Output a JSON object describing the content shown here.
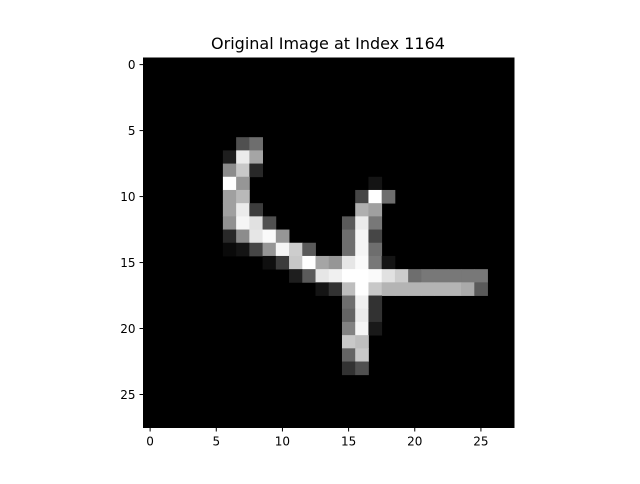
{
  "chart_data": {
    "type": "heatmap",
    "title": "Original Image at Index 1164",
    "xlabel": "",
    "ylabel": "",
    "colormap": "gray",
    "shape": [
      28,
      28
    ],
    "vmin": 0,
    "vmax": 255,
    "xlim": [
      -0.5,
      27.5
    ],
    "ylim": [
      27.5,
      -0.5
    ],
    "x_ticks": [
      0,
      5,
      10,
      15,
      20,
      25
    ],
    "y_ticks": [
      0,
      5,
      10,
      15,
      20,
      25
    ],
    "grid": false,
    "pixels": [
      {
        "row": 6,
        "col": 7,
        "v": 80
      },
      {
        "row": 6,
        "col": 8,
        "v": 110
      },
      {
        "row": 7,
        "col": 6,
        "v": 30
      },
      {
        "row": 7,
        "col": 7,
        "v": 235
      },
      {
        "row": 7,
        "col": 8,
        "v": 165
      },
      {
        "row": 8,
        "col": 6,
        "v": 140
      },
      {
        "row": 8,
        "col": 7,
        "v": 200
      },
      {
        "row": 8,
        "col": 8,
        "v": 40
      },
      {
        "row": 9,
        "col": 6,
        "v": 255
      },
      {
        "row": 9,
        "col": 7,
        "v": 150
      },
      {
        "row": 9,
        "col": 17,
        "v": 20
      },
      {
        "row": 10,
        "col": 6,
        "v": 160
      },
      {
        "row": 10,
        "col": 7,
        "v": 185
      },
      {
        "row": 10,
        "col": 16,
        "v": 70
      },
      {
        "row": 10,
        "col": 17,
        "v": 255
      },
      {
        "row": 10,
        "col": 18,
        "v": 110
      },
      {
        "row": 11,
        "col": 6,
        "v": 160
      },
      {
        "row": 11,
        "col": 7,
        "v": 235
      },
      {
        "row": 11,
        "col": 8,
        "v": 60
      },
      {
        "row": 11,
        "col": 16,
        "v": 175
      },
      {
        "row": 11,
        "col": 17,
        "v": 160
      },
      {
        "row": 12,
        "col": 6,
        "v": 145
      },
      {
        "row": 12,
        "col": 7,
        "v": 245
      },
      {
        "row": 12,
        "col": 8,
        "v": 225
      },
      {
        "row": 12,
        "col": 9,
        "v": 80
      },
      {
        "row": 12,
        "col": 15,
        "v": 90
      },
      {
        "row": 12,
        "col": 16,
        "v": 235
      },
      {
        "row": 12,
        "col": 17,
        "v": 120
      },
      {
        "row": 13,
        "col": 6,
        "v": 40
      },
      {
        "row": 13,
        "col": 7,
        "v": 140
      },
      {
        "row": 13,
        "col": 8,
        "v": 230
      },
      {
        "row": 13,
        "col": 9,
        "v": 250
      },
      {
        "row": 13,
        "col": 10,
        "v": 150
      },
      {
        "row": 13,
        "col": 15,
        "v": 110
      },
      {
        "row": 13,
        "col": 16,
        "v": 245
      },
      {
        "row": 13,
        "col": 17,
        "v": 70
      },
      {
        "row": 14,
        "col": 6,
        "v": 10
      },
      {
        "row": 14,
        "col": 7,
        "v": 20
      },
      {
        "row": 14,
        "col": 8,
        "v": 70
      },
      {
        "row": 14,
        "col": 9,
        "v": 150
      },
      {
        "row": 14,
        "col": 10,
        "v": 245
      },
      {
        "row": 14,
        "col": 11,
        "v": 205
      },
      {
        "row": 14,
        "col": 12,
        "v": 90
      },
      {
        "row": 14,
        "col": 15,
        "v": 110
      },
      {
        "row": 14,
        "col": 16,
        "v": 245
      },
      {
        "row": 14,
        "col": 17,
        "v": 110
      },
      {
        "row": 15,
        "col": 9,
        "v": 15
      },
      {
        "row": 15,
        "col": 10,
        "v": 60
      },
      {
        "row": 15,
        "col": 11,
        "v": 200
      },
      {
        "row": 15,
        "col": 12,
        "v": 255
      },
      {
        "row": 15,
        "col": 13,
        "v": 165
      },
      {
        "row": 15,
        "col": 14,
        "v": 150
      },
      {
        "row": 15,
        "col": 15,
        "v": 230
      },
      {
        "row": 15,
        "col": 16,
        "v": 250
      },
      {
        "row": 15,
        "col": 17,
        "v": 120
      },
      {
        "row": 15,
        "col": 18,
        "v": 20
      },
      {
        "row": 16,
        "col": 11,
        "v": 30
      },
      {
        "row": 16,
        "col": 12,
        "v": 90
      },
      {
        "row": 16,
        "col": 13,
        "v": 230
      },
      {
        "row": 16,
        "col": 14,
        "v": 240
      },
      {
        "row": 16,
        "col": 15,
        "v": 255
      },
      {
        "row": 16,
        "col": 16,
        "v": 255
      },
      {
        "row": 16,
        "col": 17,
        "v": 250
      },
      {
        "row": 16,
        "col": 18,
        "v": 225
      },
      {
        "row": 16,
        "col": 19,
        "v": 205
      },
      {
        "row": 16,
        "col": 20,
        "v": 110
      },
      {
        "row": 16,
        "col": 21,
        "v": 120
      },
      {
        "row": 16,
        "col": 22,
        "v": 120
      },
      {
        "row": 16,
        "col": 23,
        "v": 120
      },
      {
        "row": 16,
        "col": 24,
        "v": 120
      },
      {
        "row": 16,
        "col": 25,
        "v": 120
      },
      {
        "row": 17,
        "col": 13,
        "v": 20
      },
      {
        "row": 17,
        "col": 14,
        "v": 50
      },
      {
        "row": 17,
        "col": 15,
        "v": 190
      },
      {
        "row": 17,
        "col": 16,
        "v": 255
      },
      {
        "row": 17,
        "col": 17,
        "v": 200
      },
      {
        "row": 17,
        "col": 18,
        "v": 180
      },
      {
        "row": 17,
        "col": 19,
        "v": 180
      },
      {
        "row": 17,
        "col": 20,
        "v": 180
      },
      {
        "row": 17,
        "col": 21,
        "v": 180
      },
      {
        "row": 17,
        "col": 22,
        "v": 180
      },
      {
        "row": 17,
        "col": 23,
        "v": 180
      },
      {
        "row": 17,
        "col": 24,
        "v": 170
      },
      {
        "row": 17,
        "col": 25,
        "v": 90
      },
      {
        "row": 18,
        "col": 15,
        "v": 110
      },
      {
        "row": 18,
        "col": 16,
        "v": 240
      },
      {
        "row": 18,
        "col": 17,
        "v": 50
      },
      {
        "row": 19,
        "col": 15,
        "v": 100
      },
      {
        "row": 19,
        "col": 16,
        "v": 235
      },
      {
        "row": 19,
        "col": 17,
        "v": 50
      },
      {
        "row": 20,
        "col": 15,
        "v": 130
      },
      {
        "row": 20,
        "col": 16,
        "v": 245
      },
      {
        "row": 20,
        "col": 17,
        "v": 25
      },
      {
        "row": 21,
        "col": 15,
        "v": 200
      },
      {
        "row": 21,
        "col": 16,
        "v": 190
      },
      {
        "row": 22,
        "col": 15,
        "v": 100
      },
      {
        "row": 22,
        "col": 16,
        "v": 200
      },
      {
        "row": 23,
        "col": 15,
        "v": 50
      },
      {
        "row": 23,
        "col": 16,
        "v": 80
      }
    ]
  }
}
